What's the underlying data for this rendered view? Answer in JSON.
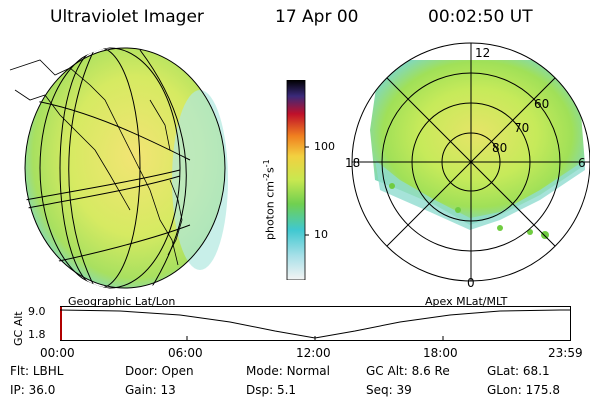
{
  "header": {
    "title": "Ultraviolet Imager",
    "date": "17 Apr 00",
    "time": "00:02:50 UT"
  },
  "colorbar": {
    "label": "photon cm",
    "label_sup1": "-2",
    "label_mid": "s",
    "label_sup2": "-1",
    "ticks": [
      "100",
      "10"
    ],
    "scale": "log"
  },
  "left_panel": {
    "caption": "Geographic Lat/Lon"
  },
  "right_panel": {
    "caption": "Apex MLat/MLT",
    "mlt_labels": {
      "top": "12",
      "left": "18",
      "right": "6",
      "bottom": "0"
    },
    "lat_labels": [
      "60",
      "70",
      "80"
    ]
  },
  "altitude_plot": {
    "axis_title": "GC Alt",
    "ymax_label": "9.0",
    "ymin_label": "1.8",
    "time_ticks": [
      "00:00",
      "06:00",
      "12:00",
      "18:00",
      "23:59"
    ]
  },
  "status": {
    "row1": [
      {
        "key": "Flt:",
        "value": "LBHL"
      },
      {
        "key": "Door:",
        "value": "Open"
      },
      {
        "key": "Mode:",
        "value": "Normal"
      },
      {
        "key": "GC Alt:",
        "value": "8.6 Re"
      },
      {
        "key": "GLat:",
        "value": "68.1"
      }
    ],
    "row2": [
      {
        "key": "IP:",
        "value": "36.0"
      },
      {
        "key": "Gain:",
        "value": "13"
      },
      {
        "key": "Dsp:",
        "value": "5.1"
      },
      {
        "key": "Seq:",
        "value": "39"
      },
      {
        "key": "GLon:",
        "value": "175.8"
      }
    ]
  },
  "colors": {
    "emission_outer": "#8fe0d8",
    "emission_mid": "#c8ec60",
    "emission_core": "#e8e070",
    "emission_warm": "#f0c850"
  }
}
